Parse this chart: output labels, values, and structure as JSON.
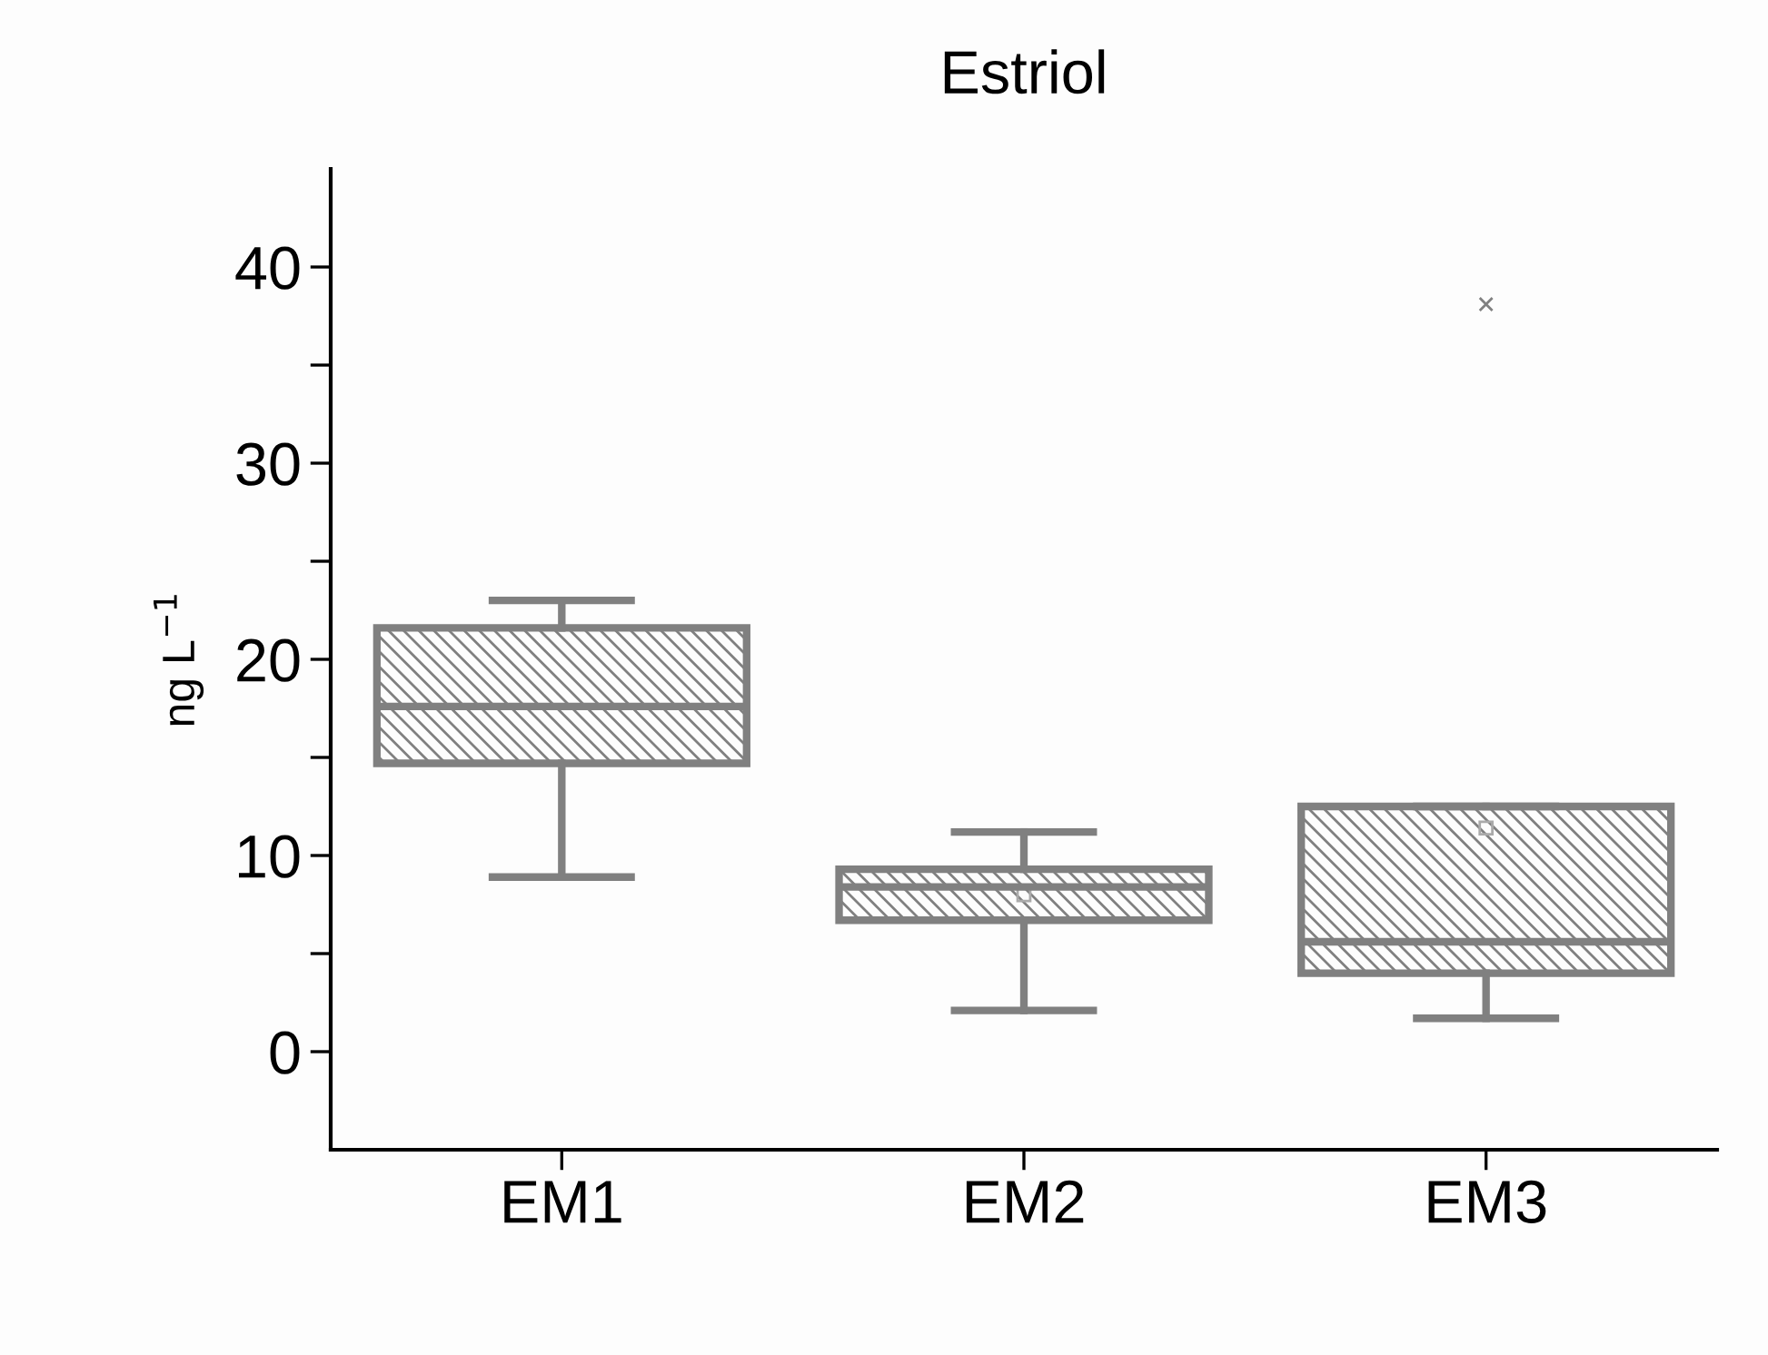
{
  "chart_data": {
    "type": "box",
    "title": "Estriol",
    "ylabel": "ng L$^{−1}$",
    "categories": [
      "EM1",
      "EM2",
      "EM3"
    ],
    "boxes": [
      {
        "low": 8.9,
        "q1": 14.7,
        "median": 17.6,
        "q3": 21.6,
        "high": 23.0
      },
      {
        "low": 2.1,
        "q1": 6.7,
        "median": 8.4,
        "q3": 9.3,
        "high": 11.2,
        "mean": 8.0
      },
      {
        "low": 1.7,
        "q1": 4.0,
        "median": 5.6,
        "q3": 12.5,
        "high": 12.5,
        "mean": 11.4,
        "outliers": [
          38.1
        ]
      }
    ],
    "color": "#808080",
    "ylim": [
      -5,
      45
    ],
    "yticks": [
      0,
      {
        "value": 5,
        "label": null
      },
      10,
      {
        "value": 15,
        "label": null
      },
      20,
      {
        "value": 25,
        "label": null
      },
      30,
      {
        "value": 35,
        "label": null
      },
      40
    ],
    "grid": false
  }
}
